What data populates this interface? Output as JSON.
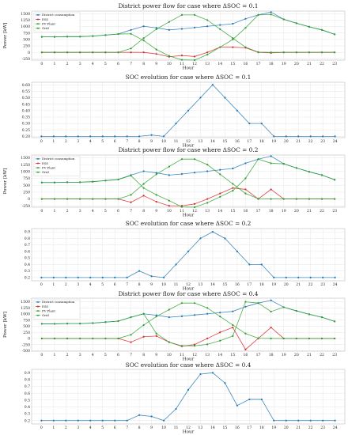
{
  "chart_data": [
    {
      "type": "line",
      "title": "District power flow for case where ΔSOC = 0.1",
      "xlabel": "Hour",
      "ylabel": "Power [kW]",
      "x": [
        0,
        1,
        2,
        3,
        4,
        5,
        6,
        7,
        8,
        9,
        10,
        11,
        12,
        13,
        14,
        15,
        16,
        17,
        18,
        19,
        20,
        21,
        22,
        23
      ],
      "xlim": [
        -0.8,
        23.8
      ],
      "ylim": [
        -300,
        1600
      ],
      "yticks": [
        -250,
        0,
        250,
        500,
        750,
        1000,
        1250,
        1500
      ],
      "grid": true,
      "legend": "top-left",
      "series": [
        {
          "name": "District consumption",
          "color": "#1f77b4",
          "values": [
            600,
            600,
            610,
            610,
            630,
            670,
            710,
            870,
            1010,
            950,
            870,
            910,
            960,
            1010,
            1060,
            1110,
            1300,
            1450,
            1560,
            1280,
            1130,
            990,
            870,
            700
          ]
        },
        {
          "name": "ESS",
          "color": "#d62728",
          "values": [
            0,
            0,
            0,
            0,
            0,
            0,
            0,
            0,
            0,
            -60,
            -170,
            -120,
            -160,
            0,
            200,
            200,
            180,
            0,
            -20,
            0,
            0,
            0,
            0,
            0
          ]
        },
        {
          "name": "PV Plant",
          "color": "#2ca02c",
          "values": [
            0,
            0,
            0,
            0,
            0,
            0,
            0,
            150,
            550,
            900,
            1180,
            1450,
            1450,
            1250,
            900,
            550,
            200,
            10,
            0,
            0,
            0,
            0,
            0,
            0
          ]
        },
        {
          "name": "Grid",
          "color": "#2ca02c",
          "values": [
            600,
            600,
            610,
            610,
            630,
            670,
            710,
            720,
            460,
            110,
            -140,
            -290,
            -300,
            -90,
            200,
            500,
            950,
            1450,
            1470,
            1280,
            1130,
            990,
            870,
            700
          ]
        }
      ]
    },
    {
      "type": "line",
      "title": "SOC evolution for case where ΔSOC = 0.1",
      "xlabel": "Hour",
      "ylabel": "",
      "x": [
        0,
        1,
        2,
        3,
        4,
        5,
        6,
        7,
        8,
        9,
        10,
        11,
        12,
        13,
        14,
        15,
        16,
        17,
        18,
        19,
        20,
        21,
        22,
        23,
        24
      ],
      "xlim": [
        -0.8,
        24.8
      ],
      "ylim": [
        0.19,
        0.62
      ],
      "yticks": [
        0.2,
        0.25,
        0.3,
        0.35,
        0.4,
        0.45,
        0.5,
        0.55,
        0.6
      ],
      "ytick_labels": [
        "0.20",
        "0.25",
        "0.30",
        "0.35",
        "0.40",
        "0.45",
        "0.50",
        "0.55",
        "0.60"
      ],
      "grid": true,
      "series": [
        {
          "name": "",
          "color": "#1f77b4",
          "values": [
            0.2,
            0.2,
            0.2,
            0.2,
            0.2,
            0.2,
            0.2,
            0.2,
            0.2,
            0.21,
            0.2,
            0.3,
            0.4,
            0.5,
            0.6,
            0.5,
            0.4,
            0.3,
            0.3,
            0.2,
            0.2,
            0.2,
            0.2,
            0.2,
            0.2
          ]
        }
      ]
    },
    {
      "type": "line",
      "title": "District power flow for case where ΔSOC = 0.2",
      "xlabel": "Hour",
      "ylabel": "Power [kW]",
      "x": [
        0,
        1,
        2,
        3,
        4,
        5,
        6,
        7,
        8,
        9,
        10,
        11,
        12,
        13,
        14,
        15,
        16,
        17,
        18,
        19,
        20,
        21,
        22,
        23
      ],
      "xlim": [
        -0.8,
        23.8
      ],
      "ylim": [
        -300,
        1600
      ],
      "yticks": [
        -250,
        0,
        250,
        500,
        750,
        1000,
        1250,
        1500
      ],
      "grid": true,
      "legend": "top-left",
      "series": [
        {
          "name": "District consumption",
          "color": "#1f77b4",
          "values": [
            600,
            600,
            610,
            610,
            630,
            670,
            710,
            870,
            1010,
            950,
            870,
            910,
            960,
            1010,
            1060,
            1110,
            1300,
            1450,
            1560,
            1280,
            1130,
            990,
            870,
            700
          ]
        },
        {
          "name": "ESS",
          "color": "#d62728",
          "values": [
            0,
            0,
            0,
            0,
            0,
            0,
            0,
            -120,
            120,
            -100,
            -250,
            -250,
            -180,
            0,
            200,
            400,
            350,
            0,
            350,
            0,
            0,
            0,
            0,
            0
          ]
        },
        {
          "name": "PV Plant",
          "color": "#2ca02c",
          "values": [
            0,
            0,
            0,
            0,
            0,
            0,
            0,
            150,
            550,
            900,
            1180,
            1450,
            1450,
            1250,
            900,
            550,
            200,
            10,
            0,
            0,
            0,
            0,
            0,
            0
          ]
        },
        {
          "name": "Grid",
          "color": "#2ca02c",
          "values": [
            600,
            600,
            610,
            610,
            630,
            670,
            710,
            850,
            400,
            150,
            -60,
            -290,
            -300,
            -140,
            80,
            300,
            750,
            1450,
            1300,
            1280,
            1130,
            990,
            870,
            700
          ]
        }
      ]
    },
    {
      "type": "line",
      "title": "SOC evolution for case where ΔSOC = 0.2",
      "xlabel": "Hour",
      "ylabel": "",
      "x": [
        0,
        1,
        2,
        3,
        4,
        5,
        6,
        7,
        8,
        9,
        10,
        11,
        12,
        13,
        14,
        15,
        16,
        17,
        18,
        19,
        20,
        21,
        22,
        23,
        24
      ],
      "xlim": [
        -0.8,
        24.8
      ],
      "ylim": [
        0.15,
        0.95
      ],
      "yticks": [
        0.2,
        0.3,
        0.4,
        0.5,
        0.6,
        0.7,
        0.8,
        0.9
      ],
      "ytick_labels": [
        "0.2",
        "0.3",
        "0.4",
        "0.5",
        "0.6",
        "0.7",
        "0.8",
        "0.9"
      ],
      "grid": true,
      "series": [
        {
          "name": "",
          "color": "#1f77b4",
          "values": [
            0.2,
            0.2,
            0.2,
            0.2,
            0.2,
            0.2,
            0.2,
            0.2,
            0.3,
            0.22,
            0.2,
            0.4,
            0.6,
            0.8,
            0.9,
            0.8,
            0.6,
            0.4,
            0.4,
            0.2,
            0.2,
            0.2,
            0.2,
            0.2,
            0.2
          ]
        }
      ]
    },
    {
      "type": "line",
      "title": "District power flow for case where ΔSOC = 0.4",
      "xlabel": "Hour",
      "ylabel": "Power [kW]",
      "x": [
        0,
        1,
        2,
        3,
        4,
        5,
        6,
        7,
        8,
        9,
        10,
        11,
        12,
        13,
        14,
        15,
        16,
        17,
        18,
        19,
        20,
        21,
        22,
        23
      ],
      "xlim": [
        -0.8,
        23.8
      ],
      "ylim": [
        -520,
        1650
      ],
      "yticks": [
        -500,
        -250,
        0,
        250,
        500,
        750,
        1000,
        1250,
        1500
      ],
      "grid": true,
      "legend": "top-left",
      "series": [
        {
          "name": "District consumption",
          "color": "#1f77b4",
          "values": [
            600,
            600,
            610,
            610,
            630,
            670,
            710,
            870,
            1010,
            950,
            870,
            910,
            960,
            1010,
            1060,
            1110,
            1300,
            1450,
            1560,
            1280,
            1130,
            990,
            870,
            700
          ]
        },
        {
          "name": "ESS",
          "color": "#d62728",
          "values": [
            0,
            0,
            0,
            0,
            0,
            0,
            0,
            -150,
            70,
            100,
            -150,
            -320,
            -250,
            0,
            250,
            450,
            -450,
            0,
            450,
            0,
            0,
            0,
            0,
            0
          ]
        },
        {
          "name": "PV Plant",
          "color": "#2ca02c",
          "values": [
            0,
            0,
            0,
            0,
            0,
            0,
            0,
            150,
            550,
            900,
            1180,
            1450,
            1450,
            1250,
            900,
            550,
            200,
            10,
            0,
            0,
            0,
            0,
            0,
            0
          ]
        },
        {
          "name": "Grid",
          "color": "#2ca02c",
          "values": [
            600,
            600,
            610,
            610,
            630,
            670,
            710,
            870,
            1010,
            200,
            -150,
            -300,
            -300,
            -240,
            -90,
            100,
            1500,
            1450,
            1100,
            1280,
            1130,
            990,
            870,
            700
          ]
        }
      ]
    },
    {
      "type": "line",
      "title": "SOC evolution for case where ΔSOC = 0.4",
      "xlabel": "Hour",
      "ylabel": "",
      "x": [
        0,
        1,
        2,
        3,
        4,
        5,
        6,
        7,
        8,
        9,
        10,
        11,
        12,
        13,
        14,
        15,
        16,
        17,
        18,
        19,
        20,
        21,
        22,
        23,
        24
      ],
      "xlim": [
        -0.8,
        24.8
      ],
      "ylim": [
        0.15,
        0.95
      ],
      "yticks": [
        0.2,
        0.3,
        0.4,
        0.5,
        0.6,
        0.7,
        0.8,
        0.9
      ],
      "ytick_labels": [
        "0.2",
        "0.3",
        "0.4",
        "0.5",
        "0.6",
        "0.7",
        "0.8",
        "0.9"
      ],
      "grid": true,
      "series": [
        {
          "name": "",
          "color": "#1f77b4",
          "values": [
            0.2,
            0.2,
            0.2,
            0.2,
            0.2,
            0.2,
            0.2,
            0.2,
            0.28,
            0.26,
            0.2,
            0.37,
            0.65,
            0.88,
            0.9,
            0.75,
            0.42,
            0.51,
            0.51,
            0.2,
            0.2,
            0.2,
            0.2,
            0.2,
            0.2
          ]
        }
      ]
    }
  ]
}
